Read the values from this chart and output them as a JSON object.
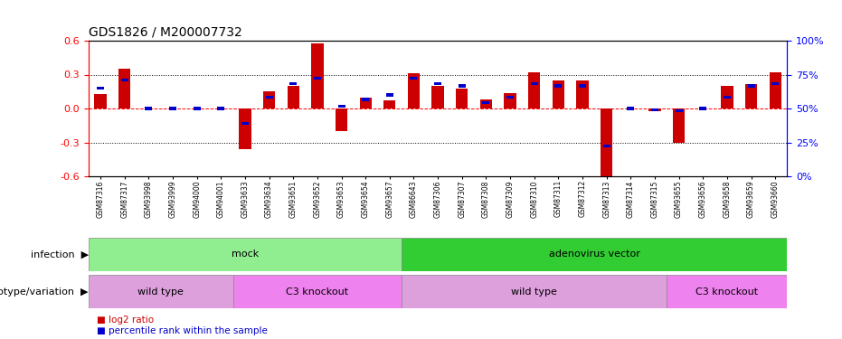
{
  "title": "GDS1826 / M200007732",
  "samples": [
    "GSM87316",
    "GSM87317",
    "GSM93998",
    "GSM93999",
    "GSM94000",
    "GSM94001",
    "GSM93633",
    "GSM93634",
    "GSM93651",
    "GSM93652",
    "GSM93653",
    "GSM93654",
    "GSM93657",
    "GSM86643",
    "GSM87306",
    "GSM87307",
    "GSM87308",
    "GSM87309",
    "GSM87310",
    "GSM87311",
    "GSM87312",
    "GSM87313",
    "GSM87314",
    "GSM87315",
    "GSM93655",
    "GSM93656",
    "GSM93658",
    "GSM93659",
    "GSM93660"
  ],
  "log2_ratio": [
    0.13,
    0.35,
    0.0,
    0.0,
    0.0,
    0.0,
    -0.36,
    0.15,
    0.2,
    0.58,
    -0.2,
    0.1,
    0.07,
    0.31,
    0.2,
    0.18,
    0.08,
    0.14,
    0.32,
    0.25,
    0.25,
    -0.6,
    0.0,
    -0.02,
    -0.3,
    0.0,
    0.2,
    0.22,
    0.32
  ],
  "percentile_rank": [
    0.18,
    0.25,
    0.0,
    0.0,
    0.0,
    0.0,
    -0.13,
    0.1,
    0.22,
    0.27,
    0.02,
    0.08,
    0.12,
    0.27,
    0.22,
    0.2,
    0.05,
    0.1,
    0.22,
    0.2,
    0.2,
    -0.33,
    0.0,
    -0.01,
    -0.02,
    0.0,
    0.1,
    0.2,
    0.22
  ],
  "infection_groups": [
    {
      "label": "mock",
      "start": 0,
      "end": 13,
      "color": "#90EE90"
    },
    {
      "label": "adenovirus vector",
      "start": 13,
      "end": 29,
      "color": "#32CD32"
    }
  ],
  "genotype_groups": [
    {
      "label": "wild type",
      "start": 0,
      "end": 6,
      "color": "#DDA0DD"
    },
    {
      "label": "C3 knockout",
      "start": 6,
      "end": 13,
      "color": "#EE82EE"
    },
    {
      "label": "wild type",
      "start": 13,
      "end": 24,
      "color": "#DDA0DD"
    },
    {
      "label": "C3 knockout",
      "start": 24,
      "end": 29,
      "color": "#EE82EE"
    }
  ],
  "ylim": [
    -0.6,
    0.6
  ],
  "yticks_left": [
    -0.6,
    -0.3,
    0.0,
    0.3,
    0.6
  ],
  "yticks_right_pos": [
    -0.6,
    -0.3,
    0.0,
    0.3,
    0.6
  ],
  "right_ylabels": [
    "0%",
    "25%",
    "50%",
    "75%",
    "100%"
  ],
  "bar_color": "#CC0000",
  "dot_color": "#0000CC",
  "bg_color": "#ffffff",
  "infection_label": "infection",
  "genotype_label": "genotype/variation",
  "legend1": "log2 ratio",
  "legend2": "percentile rank within the sample"
}
